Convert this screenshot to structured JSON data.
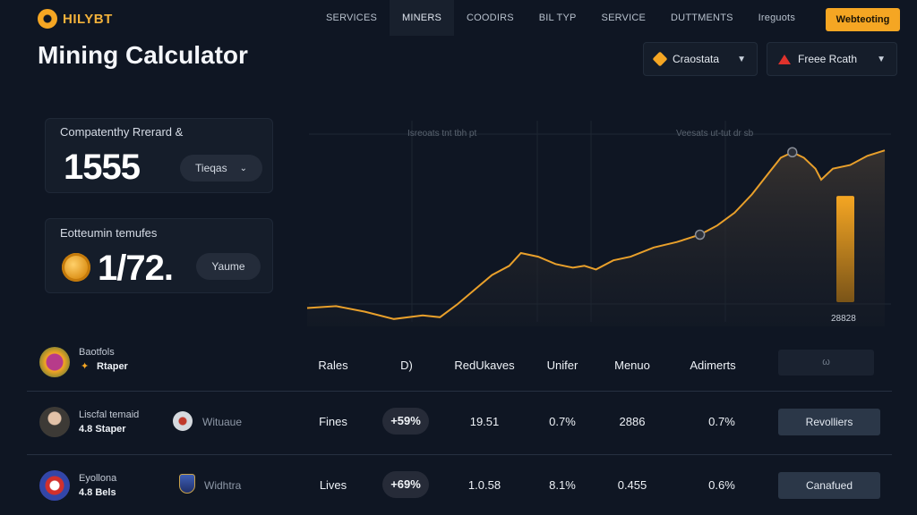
{
  "brand": {
    "name": "HILYBT"
  },
  "nav": {
    "items": [
      "SERVICES",
      "MINERS",
      "COODIRS",
      "BIL TYP",
      "SERVICE",
      "DUTTMENTS",
      "Ireguots"
    ],
    "active_index": 1
  },
  "cta_label": "Webteoting",
  "page_title": "Mining Calculator",
  "selects": {
    "coin": {
      "label": "Craostata",
      "icon": "diamond-coin-icon"
    },
    "fee": {
      "label": "Freee Rcath",
      "icon": "warning-triangle-icon"
    }
  },
  "cards": [
    {
      "label": "Compatenthy Rrerard &",
      "value": "1555",
      "pill": "Tieqas"
    },
    {
      "label": "Eotteumin temufes",
      "value": "1/72.",
      "pill": "Yaume"
    }
  ],
  "chart_data": {
    "type": "area",
    "title": "",
    "xlabel": "",
    "ylabel": "",
    "annotations": [
      "Isreoats tnt tbh pt",
      "Veesats ut-tut dr sb"
    ],
    "bar_label": "28828",
    "points": [
      [
        0,
        10
      ],
      [
        5,
        11
      ],
      [
        10,
        8
      ],
      [
        15,
        4
      ],
      [
        20,
        6
      ],
      [
        23,
        5
      ],
      [
        26,
        12
      ],
      [
        29,
        20
      ],
      [
        32,
        28
      ],
      [
        35,
        33
      ],
      [
        37,
        40
      ],
      [
        40,
        38
      ],
      [
        43,
        34
      ],
      [
        46,
        32
      ],
      [
        48,
        33
      ],
      [
        50,
        31
      ],
      [
        53,
        36
      ],
      [
        56,
        38
      ],
      [
        60,
        43
      ],
      [
        64,
        46
      ],
      [
        68,
        50
      ],
      [
        71,
        55
      ],
      [
        74,
        62
      ],
      [
        77,
        72
      ],
      [
        80,
        84
      ],
      [
        82,
        92
      ],
      [
        84,
        95
      ],
      [
        86,
        92
      ],
      [
        88,
        86
      ],
      [
        89,
        80
      ],
      [
        91,
        86
      ],
      [
        94,
        88
      ],
      [
        97,
        93
      ],
      [
        100,
        96
      ]
    ],
    "markers": [
      [
        84,
        95
      ],
      [
        68,
        50
      ]
    ],
    "ylim": [
      0,
      100
    ],
    "bar_value": 58,
    "colors": {
      "line": "#e9a02b",
      "bar": "#f5a623"
    }
  },
  "table": {
    "headers": {
      "rates": "Rales",
      "d": "D)",
      "rewards": "RedUkaves",
      "unifier": "Unifer",
      "menu": "Menuo",
      "adjust": "Adimerts",
      "box": "ω"
    },
    "head_user": {
      "line1": "Baotfols",
      "line2": "Rtaper",
      "prefix_icon": "ribbon-icon"
    },
    "rows": [
      {
        "line1": "Liscfal temaid",
        "line2": "4.8 Staper",
        "sub_label": "Wituaue",
        "col_rates": "Fines",
        "change": "+59%",
        "rewards": "19.51",
        "unifier": "0.7%",
        "menu": "2886",
        "adjust": "0.7%",
        "action": "Revolliers"
      },
      {
        "line1": "Eyollona",
        "line2": "4.8 Bels",
        "sub_label": "Widhtra",
        "col_rates": "Lives",
        "change": "+69%",
        "rewards": "1.0.58",
        "unifier": "8.1%",
        "menu": "0.455",
        "adjust": "0.6%",
        "action": "Canafued"
      }
    ]
  }
}
